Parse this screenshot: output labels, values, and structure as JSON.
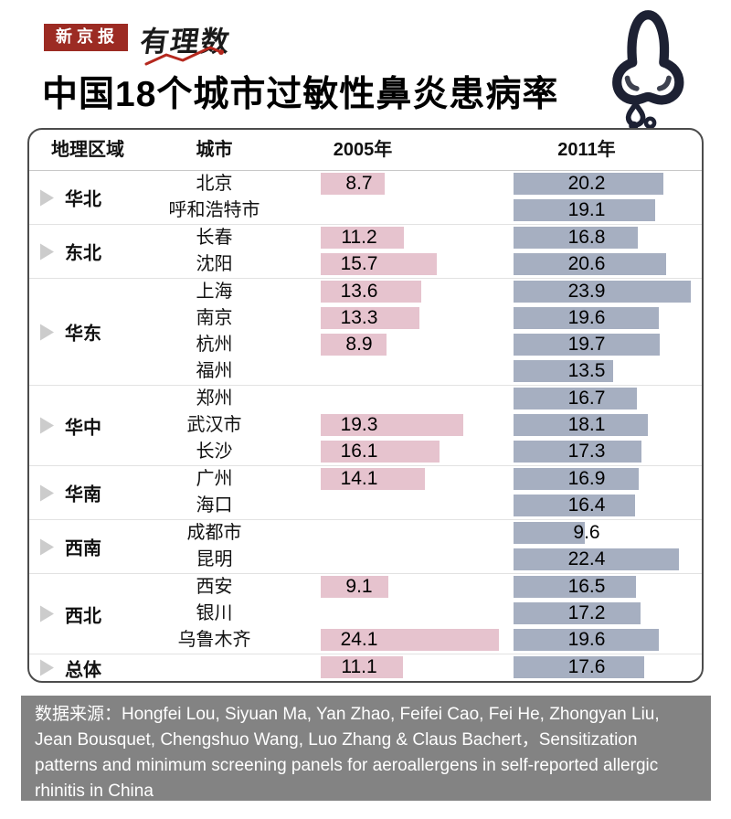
{
  "header": {
    "badge": "新京报",
    "logo": "有理数",
    "title": "中国18个城市过敏性鼻炎患病率"
  },
  "table": {
    "columns": [
      "地理区域",
      "城市",
      "2005年",
      "2011年"
    ],
    "regions": [
      {
        "name": "华北",
        "rows": [
          {
            "city": "北京",
            "v2005": 8.7,
            "v2011": 20.2
          },
          {
            "city": "呼和浩特市",
            "v2005": null,
            "v2011": 19.1
          }
        ]
      },
      {
        "name": "东北",
        "rows": [
          {
            "city": "长春",
            "v2005": 11.2,
            "v2011": 16.8
          },
          {
            "city": "沈阳",
            "v2005": 15.7,
            "v2011": 20.6
          }
        ]
      },
      {
        "name": "华东",
        "rows": [
          {
            "city": "上海",
            "v2005": 13.6,
            "v2011": 23.9
          },
          {
            "city": "南京",
            "v2005": 13.3,
            "v2011": 19.6
          },
          {
            "city": "杭州",
            "v2005": 8.9,
            "v2011": 19.7
          },
          {
            "city": "福州",
            "v2005": null,
            "v2011": 13.5
          }
        ]
      },
      {
        "name": "华中",
        "rows": [
          {
            "city": "郑州",
            "v2005": null,
            "v2011": 16.7
          },
          {
            "city": "武汉市",
            "v2005": 19.3,
            "v2011": 18.1
          },
          {
            "city": "长沙",
            "v2005": 16.1,
            "v2011": 17.3
          }
        ]
      },
      {
        "name": "华南",
        "rows": [
          {
            "city": "广州",
            "v2005": 14.1,
            "v2011": 16.9
          },
          {
            "city": "海口",
            "v2005": null,
            "v2011": 16.4
          }
        ]
      },
      {
        "name": "西南",
        "rows": [
          {
            "city": "成都市",
            "v2005": null,
            "v2011": 9.6
          },
          {
            "city": "昆明",
            "v2005": null,
            "v2011": 22.4
          }
        ]
      },
      {
        "name": "西北",
        "rows": [
          {
            "city": "西安",
            "v2005": 9.1,
            "v2011": 16.5
          },
          {
            "city": "银川",
            "v2005": null,
            "v2011": 17.2
          },
          {
            "city": "乌鲁木齐",
            "v2005": 24.1,
            "v2011": 19.6
          }
        ]
      },
      {
        "name": "总体",
        "rows": [
          {
            "city": "",
            "v2005": 11.1,
            "v2011": 17.6
          }
        ]
      }
    ]
  },
  "footer": {
    "source": "数据来源：Hongfei Lou, Siyuan Ma, Yan Zhao, Feifei Cao, Fei He, Zhongyan Liu, Jean Bousquet, Chengshuo Wang, Luo Zhang & Claus Bachert，Sensitization patterns and minimum screening panels for aeroallergens in self-reported allergic rhinitis in China"
  },
  "colors": {
    "badge_red": "#9c2b23",
    "bar_2005_pink": "#e6c3ce",
    "bar_2011_blue": "#a6afc1",
    "footer_gray": "#838383",
    "nose_icon_dark": "#1d2133",
    "logo_line_red": "#b5281e"
  },
  "chart_data": {
    "type": "bar",
    "orientation": "horizontal",
    "title": "中国18个城市过敏性鼻炎患病率",
    "categories": [
      "北京",
      "呼和浩特市",
      "长春",
      "沈阳",
      "上海",
      "南京",
      "杭州",
      "福州",
      "郑州",
      "武汉市",
      "长沙",
      "广州",
      "海口",
      "成都市",
      "昆明",
      "西安",
      "银川",
      "乌鲁木齐",
      "总体"
    ],
    "category_groups": {
      "华北": [
        "北京",
        "呼和浩特市"
      ],
      "东北": [
        "长春",
        "沈阳"
      ],
      "华东": [
        "上海",
        "南京",
        "杭州",
        "福州"
      ],
      "华中": [
        "郑州",
        "武汉市",
        "长沙"
      ],
      "华南": [
        "广州",
        "海口"
      ],
      "西南": [
        "成都市",
        "昆明"
      ],
      "西北": [
        "西安",
        "银川",
        "乌鲁木齐"
      ],
      "总体": [
        "总体"
      ]
    },
    "series": [
      {
        "name": "2005年",
        "values": [
          8.7,
          null,
          11.2,
          15.7,
          13.6,
          13.3,
          8.9,
          null,
          null,
          19.3,
          16.1,
          14.1,
          null,
          null,
          null,
          9.1,
          null,
          24.1,
          11.1
        ]
      },
      {
        "name": "2011年",
        "values": [
          20.2,
          19.1,
          16.8,
          20.6,
          23.9,
          19.6,
          19.7,
          13.5,
          16.7,
          18.1,
          17.3,
          16.9,
          16.4,
          9.6,
          22.4,
          16.5,
          17.2,
          19.6,
          17.6
        ]
      }
    ],
    "value_unit": "%",
    "xlim": [
      0,
      25
    ],
    "grid": false,
    "legend_position": "column-headers"
  }
}
